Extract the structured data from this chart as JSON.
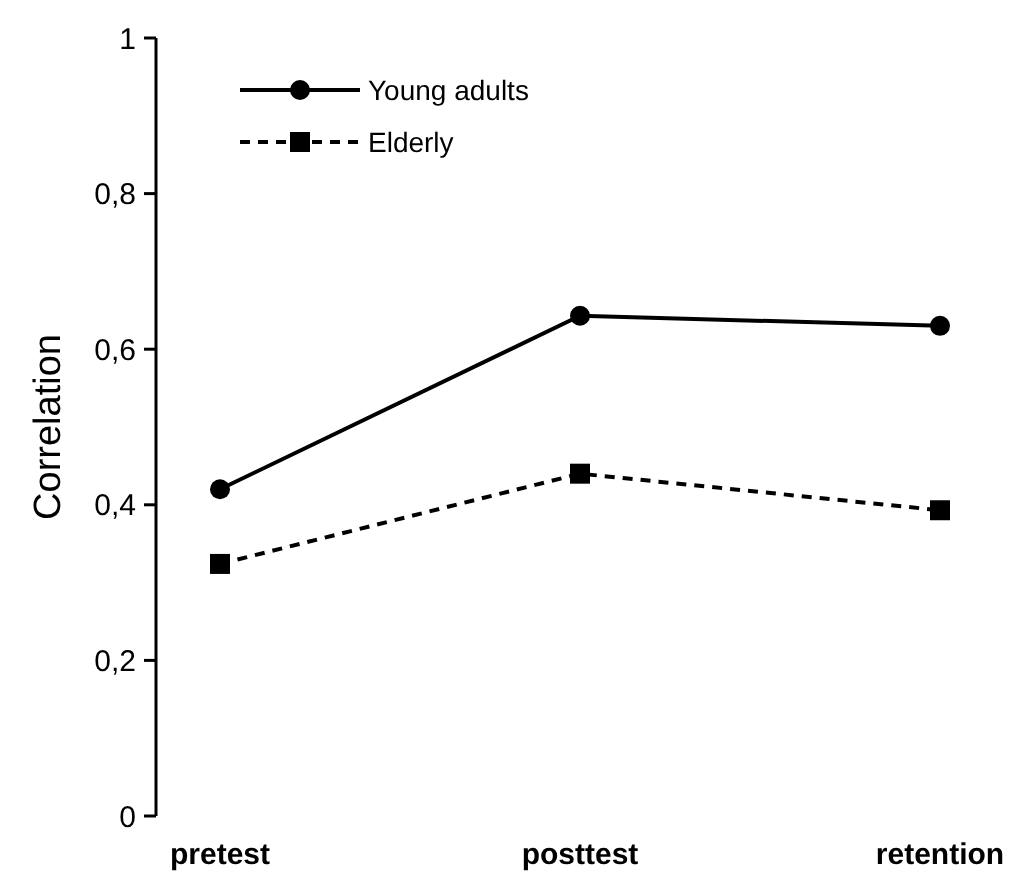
{
  "chart_data": {
    "type": "line",
    "ylabel": "Correlation",
    "categories": [
      "pretest",
      "posttest",
      "retention"
    ],
    "series": [
      {
        "name": "Young adults",
        "color": "#000000",
        "values": [
          0.42,
          0.643,
          0.63
        ],
        "marker": "circle",
        "line_style": "solid"
      },
      {
        "name": "Elderly",
        "color": "#000000",
        "values": [
          0.324,
          0.44,
          0.393
        ],
        "marker": "square",
        "line_style": "dashed"
      }
    ],
    "ylim": [
      0,
      1
    ],
    "yticks": [
      0,
      {
        "value": 0.2,
        "label": "0,2"
      },
      {
        "value": 0.4,
        "label": "0,4"
      },
      {
        "value": 0.6,
        "label": "0,6"
      },
      {
        "value": 0.8,
        "label": "0,8"
      },
      {
        "value": 1,
        "label": "1"
      }
    ],
    "legend": "top left",
    "grid": false
  }
}
